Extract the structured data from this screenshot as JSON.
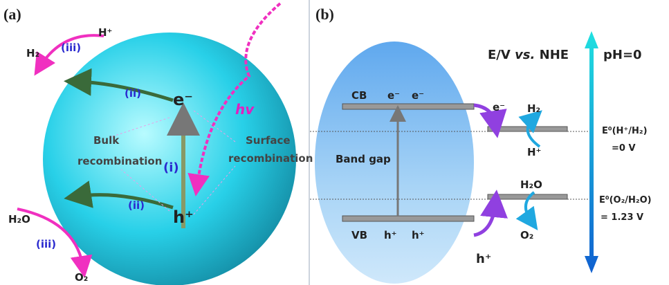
{
  "panel_a": {
    "label": "(a)",
    "h_plus_top": "H⁺",
    "h2": "H₂",
    "step_iii_top": "(iii)",
    "step_ii_top": "(ii)",
    "electron": "e⁻",
    "hv": "hv",
    "bulk_1": "Bulk",
    "bulk_2": "recombination",
    "step_i": "(i)",
    "surface_1": "Surface",
    "surface_2": "recombination",
    "hole": "h⁺",
    "step_ii_bottom": "(ii)",
    "h2o": "H₂O",
    "step_iii_bottom": "(iii)",
    "o2": "O₂"
  },
  "panel_b": {
    "label": "(b)",
    "axis_title_1": "E/V ",
    "axis_title_vs": "vs.",
    "axis_title_2": " NHE",
    "ph": "pH=0",
    "cb": "CB",
    "cb_e1": "e⁻",
    "cb_e2": "e⁻",
    "transfer_e": "e⁻",
    "h2": "H₂",
    "h_plus": "H⁺",
    "band_gap": "Band gap",
    "h2o": "H₂O",
    "o2": "O₂",
    "vb": "VB",
    "vb_h1": "h⁺",
    "vb_h2": "h⁺",
    "transfer_h": "h⁺",
    "e_h_1": "E⁰(H⁺/H₂)",
    "e_h_2": "=0 V",
    "e_o_1": "E⁰(O₂/H₂O)",
    "e_o_2": "= 1.23 V"
  }
}
